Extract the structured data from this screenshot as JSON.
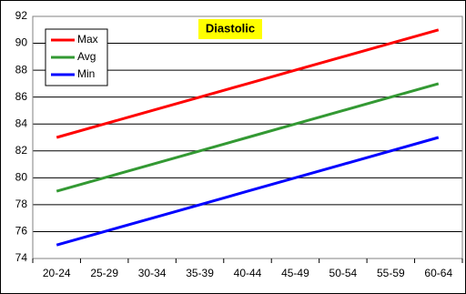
{
  "chart_data": {
    "type": "line",
    "title": "Diastolic",
    "categories": [
      "20-24",
      "25-29",
      "30-34",
      "35-39",
      "40-44",
      "45-49",
      "50-54",
      "55-59",
      "60-64"
    ],
    "series": [
      {
        "name": "Max",
        "color": "#ff0000",
        "values": [
          83,
          84,
          85,
          86,
          87,
          88,
          89,
          90,
          91
        ]
      },
      {
        "name": "Avg",
        "color": "#339933",
        "values": [
          79,
          80,
          81,
          82,
          83,
          84,
          85,
          86,
          87
        ]
      },
      {
        "name": "Min",
        "color": "#0000ff",
        "values": [
          75,
          76,
          77,
          78,
          79,
          80,
          81,
          82,
          83
        ]
      }
    ],
    "ylim": [
      74,
      92
    ],
    "yticks": [
      74,
      76,
      78,
      80,
      82,
      84,
      86,
      88,
      90,
      92
    ],
    "grid": true,
    "legend": "top-left"
  }
}
